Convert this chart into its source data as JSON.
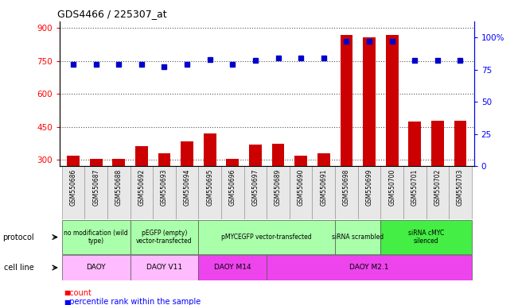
{
  "title": "GDS4466 / 225307_at",
  "samples": [
    "GSM550686",
    "GSM550687",
    "GSM550688",
    "GSM550692",
    "GSM550693",
    "GSM550694",
    "GSM550695",
    "GSM550696",
    "GSM550697",
    "GSM550689",
    "GSM550690",
    "GSM550691",
    "GSM550698",
    "GSM550699",
    "GSM550700",
    "GSM550701",
    "GSM550702",
    "GSM550703"
  ],
  "counts": [
    318,
    302,
    302,
    362,
    328,
    382,
    418,
    302,
    368,
    372,
    318,
    328,
    868,
    858,
    868,
    475,
    478,
    478
  ],
  "percentiles": [
    79,
    79,
    79,
    79,
    77,
    79,
    83,
    79,
    82,
    84,
    84,
    84,
    97,
    97,
    97,
    82,
    82,
    82
  ],
  "protocol_groups": [
    {
      "label": "no modification (wild\ntype)",
      "start": 0,
      "end": 3,
      "color": "#aaffaa"
    },
    {
      "label": "pEGFP (empty)\nvector-transfected",
      "start": 3,
      "end": 6,
      "color": "#aaffaa"
    },
    {
      "label": "pMYCEGFP vector-transfected",
      "start": 6,
      "end": 12,
      "color": "#aaffaa"
    },
    {
      "label": "siRNA scrambled",
      "start": 12,
      "end": 14,
      "color": "#aaffaa"
    },
    {
      "label": "siRNA cMYC\nsilenced",
      "start": 14,
      "end": 18,
      "color": "#44ee44"
    }
  ],
  "cellline_groups": [
    {
      "label": "DAOY",
      "start": 0,
      "end": 3,
      "color": "#ffbbff"
    },
    {
      "label": "DAOY V11",
      "start": 3,
      "end": 6,
      "color": "#ffbbff"
    },
    {
      "label": "DAOY M14",
      "start": 6,
      "end": 9,
      "color": "#ee44ee"
    },
    {
      "label": "DAOY M2.1",
      "start": 9,
      "end": 18,
      "color": "#ee44ee"
    }
  ],
  "ylim_left": [
    270,
    930
  ],
  "ylim_right": [
    0,
    112.5
  ],
  "yticks_left": [
    300,
    450,
    600,
    750,
    900
  ],
  "yticks_right": [
    0,
    25,
    50,
    75,
    100
  ],
  "bar_color": "#cc0000",
  "dot_color": "#0000cc",
  "grid_color": "#555555",
  "bg_color": "#e8e8e8"
}
